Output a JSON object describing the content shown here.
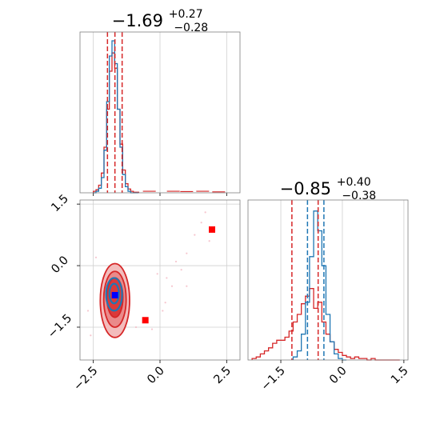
{
  "chart_data": [
    {
      "type": "histogram",
      "panel": "param1-marginal",
      "title": {
        "value": "−1.69",
        "upper": "+0.27",
        "lower": "−0.28"
      },
      "xlim": [
        -3,
        3
      ],
      "x_ticks": [
        -2.5,
        0.0,
        2.5
      ],
      "quantile_lines": [
        -1.97,
        -1.69,
        -1.42
      ],
      "series": [
        {
          "color": "#d62728",
          "bin_edges": [
            -2.5,
            -2.4,
            -2.3,
            -2.2,
            -2.1,
            -2.0,
            -1.9,
            -1.8,
            -1.7,
            -1.6,
            -1.5,
            -1.4,
            -1.3,
            -1.2,
            -1.1,
            -1.0,
            -0.9,
            -0.8
          ],
          "counts": [
            0.01,
            0.02,
            0.05,
            0.13,
            0.3,
            0.55,
            0.8,
            0.92,
            0.82,
            0.55,
            0.32,
            0.15,
            0.06,
            0.025,
            0.01,
            0.004,
            0.004
          ],
          "tail_points": [
            [
              -0.4,
              0.01
            ],
            [
              0.5,
              0.01
            ],
            [
              1.0,
              0.008
            ],
            [
              1.6,
              0.01
            ],
            [
              2.2,
              0.006
            ]
          ]
        },
        {
          "color": "#1f77b4",
          "bin_edges": [
            -2.5,
            -2.4,
            -2.3,
            -2.2,
            -2.1,
            -2.0,
            -1.9,
            -1.8,
            -1.7,
            -1.6,
            -1.5,
            -1.4,
            -1.3,
            -1.2,
            -1.1,
            -1.0,
            -0.9,
            -0.8
          ],
          "counts": [
            0.0,
            0.01,
            0.03,
            0.1,
            0.28,
            0.6,
            0.9,
            1.0,
            0.85,
            0.55,
            0.3,
            0.12,
            0.04,
            0.01,
            0.0,
            0.0,
            0.0
          ]
        }
      ]
    },
    {
      "type": "histogram",
      "panel": "param2-marginal",
      "title": {
        "value": "−0.85",
        "upper": "+0.40",
        "lower": "−0.38"
      },
      "xlim": [
        -2.3,
        1.6
      ],
      "x_ticks": [
        -1.5,
        0.0,
        1.5
      ],
      "quantile_lines_red": [
        -1.23,
        -0.59
      ],
      "quantile_lines_blue": [
        -0.85,
        -0.45
      ],
      "series": [
        {
          "color": "#d62728",
          "bin_edges": [
            -2.2,
            -2.1,
            -2.0,
            -1.9,
            -1.8,
            -1.7,
            -1.6,
            -1.5,
            -1.4,
            -1.3,
            -1.2,
            -1.1,
            -1.0,
            -0.9,
            -0.8,
            -0.7,
            -0.6,
            -0.5,
            -0.4,
            -0.3,
            -0.2,
            -0.1,
            0.0,
            0.1,
            0.2,
            0.3,
            0.4,
            0.5,
            0.6,
            0.7,
            0.8,
            0.9,
            1.0,
            1.1,
            1.2,
            1.3,
            1.4
          ],
          "counts": [
            0.01,
            0.02,
            0.04,
            0.06,
            0.08,
            0.11,
            0.13,
            0.13,
            0.15,
            0.19,
            0.25,
            0.3,
            0.37,
            0.42,
            0.47,
            0.34,
            0.38,
            0.25,
            0.17,
            0.12,
            0.07,
            0.05,
            0.03,
            0.02,
            0.01,
            0.02,
            0.01,
            0.01,
            0.0,
            0.01,
            0.0,
            0.0,
            0.0,
            0.0,
            0.0,
            0.0
          ]
        },
        {
          "color": "#1f77b4",
          "bin_edges": [
            -1.2,
            -1.1,
            -1.0,
            -0.9,
            -0.8,
            -0.7,
            -0.6,
            -0.5,
            -0.4,
            -0.3,
            -0.2,
            -0.1,
            0.0,
            0.1
          ],
          "counts": [
            0.02,
            0.06,
            0.17,
            0.38,
            0.68,
            0.98,
            0.85,
            0.62,
            0.3,
            0.12,
            0.04,
            0.01,
            0.0
          ]
        }
      ]
    },
    {
      "type": "scatter",
      "panel": "joint-2d",
      "xlim": [
        -3,
        3
      ],
      "ylim": [
        -2.3,
        1.6
      ],
      "x_ticks": [
        -2.5,
        0.0,
        2.5
      ],
      "y_ticks": [
        -1.5,
        0.0,
        1.5
      ],
      "contours": [
        {
          "color": "#d62728",
          "fill": "#f3bcbc",
          "level": 3,
          "cx": -1.69,
          "cy": -0.85,
          "rx": 0.55,
          "ry": 0.9
        },
        {
          "color": "#d62728",
          "fill": "#ea8a8a",
          "level": 2,
          "cx": -1.69,
          "cy": -0.82,
          "rx": 0.42,
          "ry": 0.68
        },
        {
          "color": "#d62728",
          "fill": "#db3a3a",
          "level": 1,
          "cx": -1.69,
          "cy": -0.78,
          "rx": 0.3,
          "ry": 0.48
        },
        {
          "color": "#1f77b4",
          "fill": "none",
          "level": 2,
          "cx": -1.72,
          "cy": -0.7,
          "rx": 0.3,
          "ry": 0.4
        },
        {
          "color": "#1f77b4",
          "fill": "none",
          "level": 1,
          "cx": -1.72,
          "cy": -0.68,
          "rx": 0.18,
          "ry": 0.24
        }
      ],
      "markers": [
        {
          "color": "#0000ff",
          "x": -1.69,
          "y": -0.72
        },
        {
          "color": "#ff0000",
          "x": -0.55,
          "y": -1.33
        },
        {
          "color": "#ff0000",
          "x": 1.95,
          "y": 0.88
        }
      ],
      "scatter_points": [
        [
          1.0,
          0.3
        ],
        [
          0.45,
          -0.5
        ],
        [
          0.8,
          -0.1
        ],
        [
          1.7,
          1.3
        ],
        [
          1.85,
          0.6
        ],
        [
          0.2,
          -0.9
        ],
        [
          -0.3,
          -1.55
        ],
        [
          0.1,
          -1.1
        ],
        [
          1.3,
          0.75
        ],
        [
          -0.1,
          -0.2
        ],
        [
          0.6,
          0.1
        ],
        [
          -2.6,
          -1.7
        ],
        [
          -2.7,
          -1.1
        ],
        [
          -0.9,
          -1.5
        ],
        [
          -2.4,
          0.2
        ],
        [
          1.0,
          -0.5
        ],
        [
          1.55,
          1.05
        ],
        [
          0.25,
          -0.3
        ]
      ]
    }
  ]
}
